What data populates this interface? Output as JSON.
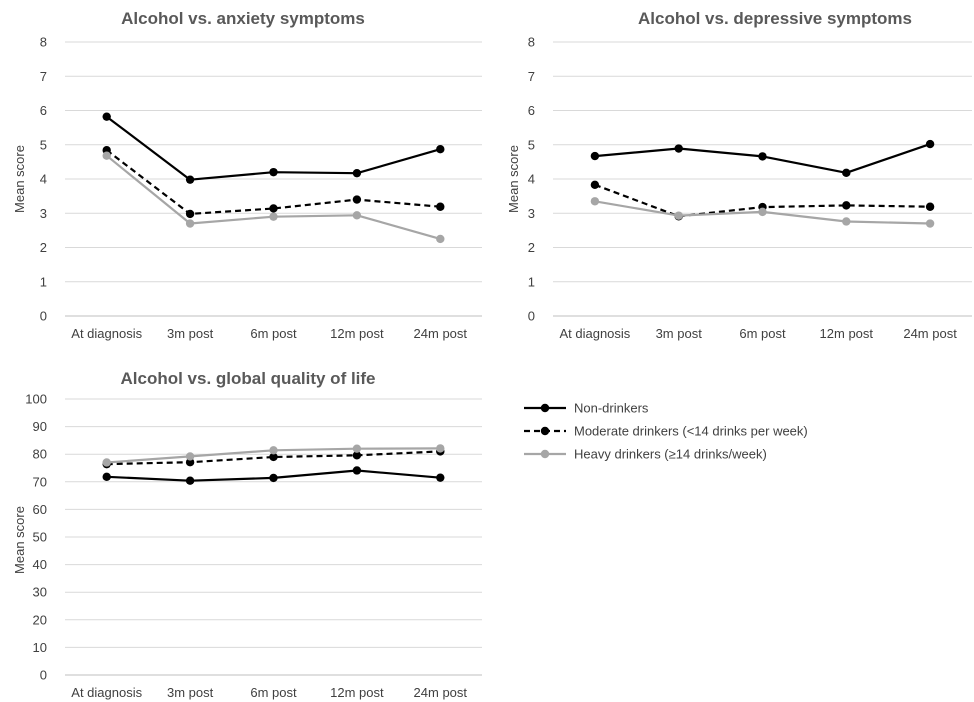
{
  "chart_data": [
    {
      "type": "line",
      "title": "Alcohol vs. anxiety symptoms",
      "xlabel": "",
      "ylabel": "Mean score",
      "categories": [
        "At diagnosis",
        "3m post",
        "6m post",
        "12m post",
        "24m post"
      ],
      "ylim": [
        0,
        8
      ],
      "yticks": [
        0,
        1,
        2,
        3,
        4,
        5,
        6,
        7,
        8
      ],
      "grid": true,
      "series": [
        {
          "name": "Non-drinkers",
          "values": [
            5.82,
            3.98,
            4.2,
            4.17,
            4.87
          ],
          "color": "#000000",
          "dash": "solid"
        },
        {
          "name": "Moderate drinkers (<14 drinks per week)",
          "values": [
            4.84,
            2.98,
            3.14,
            3.4,
            3.19
          ],
          "color": "#000000",
          "dash": "dashed"
        },
        {
          "name": "Heavy drinkers (≥14 drinks/week)",
          "values": [
            4.68,
            2.7,
            2.9,
            2.94,
            2.25
          ],
          "color": "#a6a6a6",
          "dash": "solid"
        }
      ]
    },
    {
      "type": "line",
      "title": "Alcohol vs. depressive symptoms",
      "xlabel": "",
      "ylabel": "Mean score",
      "categories": [
        "At diagnosis",
        "3m post",
        "6m post",
        "12m post",
        "24m post"
      ],
      "ylim": [
        0,
        8
      ],
      "yticks": [
        0,
        1,
        2,
        3,
        4,
        5,
        6,
        7,
        8
      ],
      "grid": true,
      "series": [
        {
          "name": "Non-drinkers",
          "values": [
            4.67,
            4.89,
            4.66,
            4.18,
            5.02
          ],
          "color": "#000000",
          "dash": "solid"
        },
        {
          "name": "Moderate drinkers (<14 drinks per week)",
          "values": [
            3.83,
            2.91,
            3.18,
            3.23,
            3.19
          ],
          "color": "#000000",
          "dash": "dashed"
        },
        {
          "name": "Heavy drinkers (≥14 drinks/week)",
          "values": [
            3.35,
            2.93,
            3.04,
            2.76,
            2.7
          ],
          "color": "#a6a6a6",
          "dash": "solid"
        }
      ]
    },
    {
      "type": "line",
      "title": "Alcohol vs. global quality of life",
      "xlabel": "",
      "ylabel": "Mean score",
      "categories": [
        "At diagnosis",
        "3m post",
        "6m post",
        "12m post",
        "24m post"
      ],
      "ylim": [
        0,
        100
      ],
      "yticks": [
        0,
        10,
        20,
        30,
        40,
        50,
        60,
        70,
        80,
        90,
        100
      ],
      "grid": true,
      "series": [
        {
          "name": "Non-drinkers",
          "values": [
            71.8,
            70.4,
            71.4,
            74.1,
            71.5
          ],
          "color": "#000000",
          "dash": "solid"
        },
        {
          "name": "Moderate drinkers (<14 drinks per week)",
          "values": [
            76.4,
            77.1,
            79.0,
            79.6,
            81.0
          ],
          "color": "#000000",
          "dash": "dashed"
        },
        {
          "name": "Heavy drinkers (≥14 drinks/week)",
          "values": [
            77.0,
            79.2,
            81.4,
            82.0,
            82.1
          ],
          "color": "#a6a6a6",
          "dash": "solid"
        }
      ]
    }
  ],
  "legend": {
    "placement": "right of bottom chart",
    "entries": [
      {
        "label": "Non-drinkers",
        "color": "#000000",
        "dash": "solid"
      },
      {
        "label": "Moderate drinkers (<14 drinks per week)",
        "color": "#000000",
        "dash": "dashed"
      },
      {
        "label": "Heavy drinkers (≥14 drinks/week)",
        "color": "#a6a6a6",
        "dash": "solid"
      }
    ]
  }
}
